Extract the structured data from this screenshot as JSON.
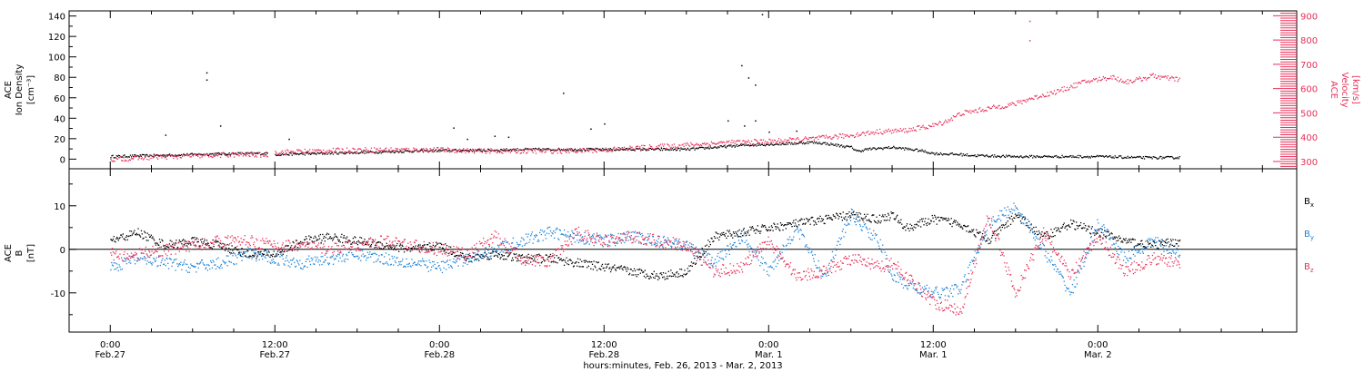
{
  "chart_data": [
    {
      "type": "scatter",
      "panel": "top",
      "ylabel_left": [
        "ACE",
        "Ion Density",
        "[cm⁻³]"
      ],
      "ylabel_right": [
        "ACE",
        "Velocity",
        "[km/s]"
      ],
      "ylim_left": [
        -5,
        145
      ],
      "yticks_left": [
        0,
        20,
        40,
        60,
        80,
        100,
        120,
        140
      ],
      "ylim_right": [
        270,
        920
      ],
      "yticks_right": [
        300,
        400,
        500,
        600,
        700,
        800,
        900
      ],
      "xlim_hours": [
        -3,
        86.5
      ],
      "data_end_hours": 78.5,
      "colors": {
        "density": "#000000",
        "velocity": "#e8305a"
      },
      "series": [
        {
          "key": "density",
          "axis": "left",
          "x": [
            0,
            3,
            6,
            9,
            11.5,
            11.5,
            12,
            15,
            18,
            21,
            24,
            27,
            30,
            33,
            36,
            39,
            42,
            45,
            46,
            48,
            50,
            51,
            52,
            54,
            54.5,
            55,
            57,
            59,
            60,
            62,
            63,
            66,
            69,
            72,
            75,
            78
          ],
          "y": [
            3,
            4,
            5,
            6,
            6,
            null,
            5,
            6,
            7,
            8,
            9,
            9,
            10,
            10,
            10,
            10,
            10,
            13,
            14,
            15,
            16,
            17,
            16,
            12,
            8,
            10,
            12,
            9,
            6,
            5,
            4,
            3,
            3,
            3,
            2,
            2
          ]
        },
        {
          "key": "velocity",
          "axis": "right",
          "x": [
            0,
            3,
            6,
            9,
            11.5,
            11.5,
            12,
            15,
            18,
            21,
            24,
            27,
            30,
            33,
            36,
            39,
            42,
            45,
            48,
            51,
            54,
            56,
            58,
            60,
            61,
            62,
            63,
            64,
            66,
            67,
            69,
            70,
            71,
            72,
            73,
            74,
            75,
            76,
            77,
            78
          ],
          "y": [
            310,
            320,
            325,
            330,
            330,
            null,
            340,
            345,
            350,
            350,
            350,
            345,
            345,
            345,
            350,
            360,
            370,
            380,
            385,
            395,
            410,
            425,
            430,
            450,
            470,
            500,
            510,
            520,
            540,
            560,
            590,
            610,
            630,
            640,
            650,
            630,
            640,
            655,
            645,
            640
          ]
        }
      ],
      "outliers": {
        "density": [
          [
            7,
            85
          ],
          [
            7,
            78
          ],
          [
            8,
            33
          ],
          [
            4,
            24
          ],
          [
            13,
            20
          ],
          [
            25,
            31
          ],
          [
            26,
            20
          ],
          [
            28,
            23
          ],
          [
            29,
            22
          ],
          [
            33,
            65
          ],
          [
            35,
            30
          ],
          [
            36,
            35
          ],
          [
            45,
            38
          ],
          [
            46,
            92
          ],
          [
            46.5,
            80
          ],
          [
            46.2,
            33
          ],
          [
            47,
            73
          ],
          [
            47,
            38
          ],
          [
            48,
            27
          ],
          [
            47.5,
            142
          ],
          [
            50,
            28
          ]
        ],
        "velocity": [
          [
            67,
            880
          ],
          [
            67,
            800
          ]
        ]
      }
    },
    {
      "type": "scatter",
      "panel": "bottom",
      "ylabel_left": [
        "ACE",
        "B",
        "[nT]"
      ],
      "ylim": [
        -19,
        18.5
      ],
      "yticks": [
        -10,
        0,
        10
      ],
      "zero_line": true,
      "xlim_hours": [
        -3,
        86.5
      ],
      "data_end_hours": 78.5,
      "legend": [
        "Bx",
        "By",
        "Bz"
      ],
      "legend_position": "right",
      "colors": {
        "Bx": "#000000",
        "By": "#1e84d8",
        "Bz": "#e8305a"
      },
      "series": [
        {
          "key": "Bx",
          "x": [
            0,
            2,
            4,
            6,
            8,
            10,
            12,
            14,
            16,
            18,
            20,
            22,
            24,
            26,
            28,
            30,
            32,
            34,
            36,
            38,
            40,
            42,
            44,
            46,
            48,
            50,
            52,
            54,
            56,
            57,
            58,
            60,
            62,
            64,
            66,
            68,
            70,
            72,
            74,
            76,
            78
          ],
          "y": [
            2,
            4,
            1,
            2,
            1,
            -1,
            -1,
            2,
            3,
            2,
            1,
            0,
            1,
            -2,
            -1,
            -2,
            -2,
            -3,
            -4,
            -5,
            -6,
            -5,
            3,
            4,
            5,
            6,
            7,
            8,
            7,
            8,
            5,
            7,
            6,
            2,
            8,
            3,
            6,
            4,
            2,
            1,
            2
          ]
        },
        {
          "key": "By",
          "x": [
            0,
            2,
            4,
            6,
            8,
            10,
            12,
            14,
            16,
            18,
            20,
            22,
            24,
            26,
            28,
            30,
            32,
            34,
            36,
            38,
            40,
            42,
            44,
            46,
            48,
            50,
            52,
            54,
            56,
            57,
            58,
            60,
            62,
            64,
            66,
            68,
            70,
            72,
            74,
            76,
            78
          ],
          "y": [
            -4,
            -2,
            -3,
            -4,
            -3,
            -1,
            -2,
            -3,
            -2,
            -1,
            -2,
            -3,
            -4,
            -2,
            0,
            2,
            4,
            3,
            2,
            3,
            2,
            1,
            -3,
            3,
            -5,
            5,
            -6,
            8,
            2,
            -6,
            -8,
            -10,
            -9,
            6,
            10,
            0,
            -10,
            6,
            -2,
            2,
            -1
          ]
        },
        {
          "key": "Bz",
          "x": [
            0,
            2,
            4,
            6,
            8,
            10,
            12,
            14,
            16,
            18,
            20,
            22,
            24,
            26,
            28,
            30,
            32,
            34,
            36,
            38,
            40,
            42,
            44,
            46,
            48,
            50,
            52,
            54,
            56,
            57,
            58,
            60,
            62,
            64,
            66,
            68,
            70,
            72,
            74,
            76,
            78
          ],
          "y": [
            -1,
            -1,
            0,
            1,
            2,
            2,
            1,
            1,
            0,
            1,
            2,
            1,
            0,
            -1,
            3,
            -2,
            -3,
            4,
            2,
            3,
            2,
            1,
            -5,
            -4,
            2,
            -6,
            -5,
            -2,
            -4,
            -3,
            -6,
            -12,
            -14,
            8,
            -10,
            4,
            -6,
            3,
            -5,
            -2,
            -3
          ]
        }
      ]
    }
  ],
  "x_axis": {
    "ticks": [
      {
        "time": "0:00",
        "date": "Feb.27"
      },
      {
        "time": "12:00",
        "date": "Feb.27"
      },
      {
        "time": "0:00",
        "date": "Feb.28"
      },
      {
        "time": "12:00",
        "date": "Feb.28"
      },
      {
        "time": "0:00",
        "date": "Mar. 1"
      },
      {
        "time": "12:00",
        "date": "Mar. 1"
      },
      {
        "time": "0:00",
        "date": "Mar. 2"
      }
    ],
    "tick_hours": [
      0,
      12,
      24,
      36,
      48,
      60,
      72
    ],
    "label": "hours:minutes, Feb. 26, 2013 - Mar.  2, 2013"
  }
}
